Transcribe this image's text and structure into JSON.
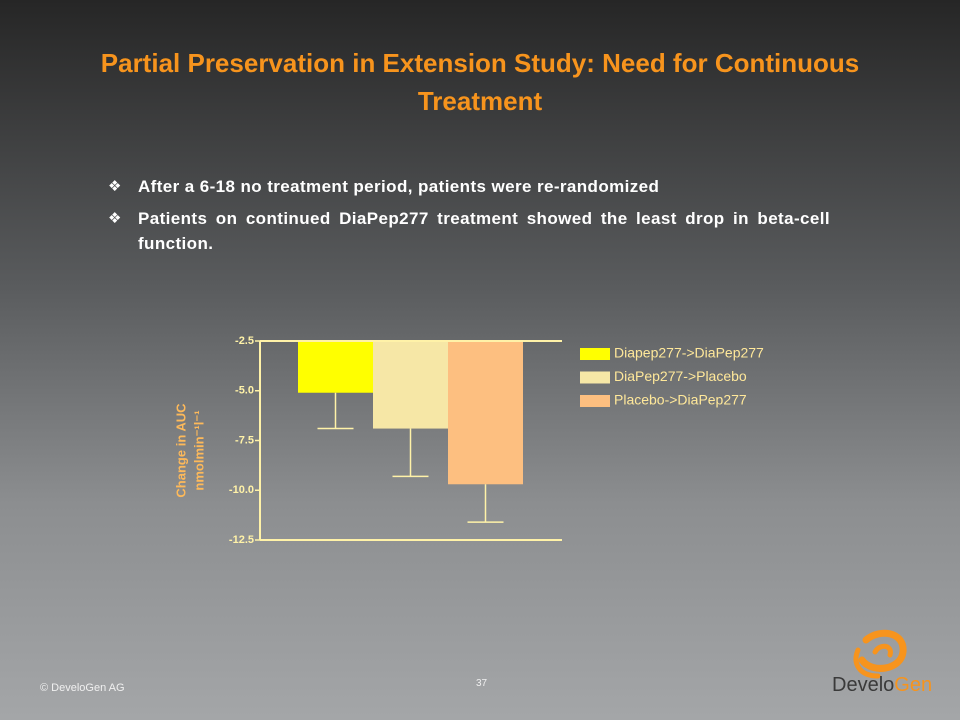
{
  "title": "Partial Preservation in Extension Study:  Need for Continuous Treatment",
  "bullets": [
    "After a 6-18 no treatment period, patients were re-randomized",
    "Patients on continued DiaPep277 treatment showed the least drop in beta-cell function."
  ],
  "chart_data": {
    "type": "bar",
    "ylabel": [
      "Change in AUC",
      "nmolmin⁻¹l⁻¹"
    ],
    "categories": [
      "Diapep277->DiaPep277",
      "DiaPep277->Placebo",
      "Placebo->DiaPep277"
    ],
    "values": [
      -5.1,
      -6.9,
      -9.7
    ],
    "errors": [
      1.8,
      2.4,
      1.9
    ],
    "colors": [
      "#ffff00",
      "#f6e7a6",
      "#fdbf80"
    ],
    "ylim": [
      -12.5,
      -2.5
    ],
    "yticks": [
      -2.5,
      {
        "value": -5,
        "label": "-5.0"
      },
      -7.5,
      {
        "value": -10,
        "label": "-10.0"
      },
      -12.5
    ],
    "legend": "right"
  },
  "footer": {
    "copyright": "© DeveloGen AG",
    "page": "37",
    "logo": [
      "Develo",
      "Gen"
    ]
  }
}
